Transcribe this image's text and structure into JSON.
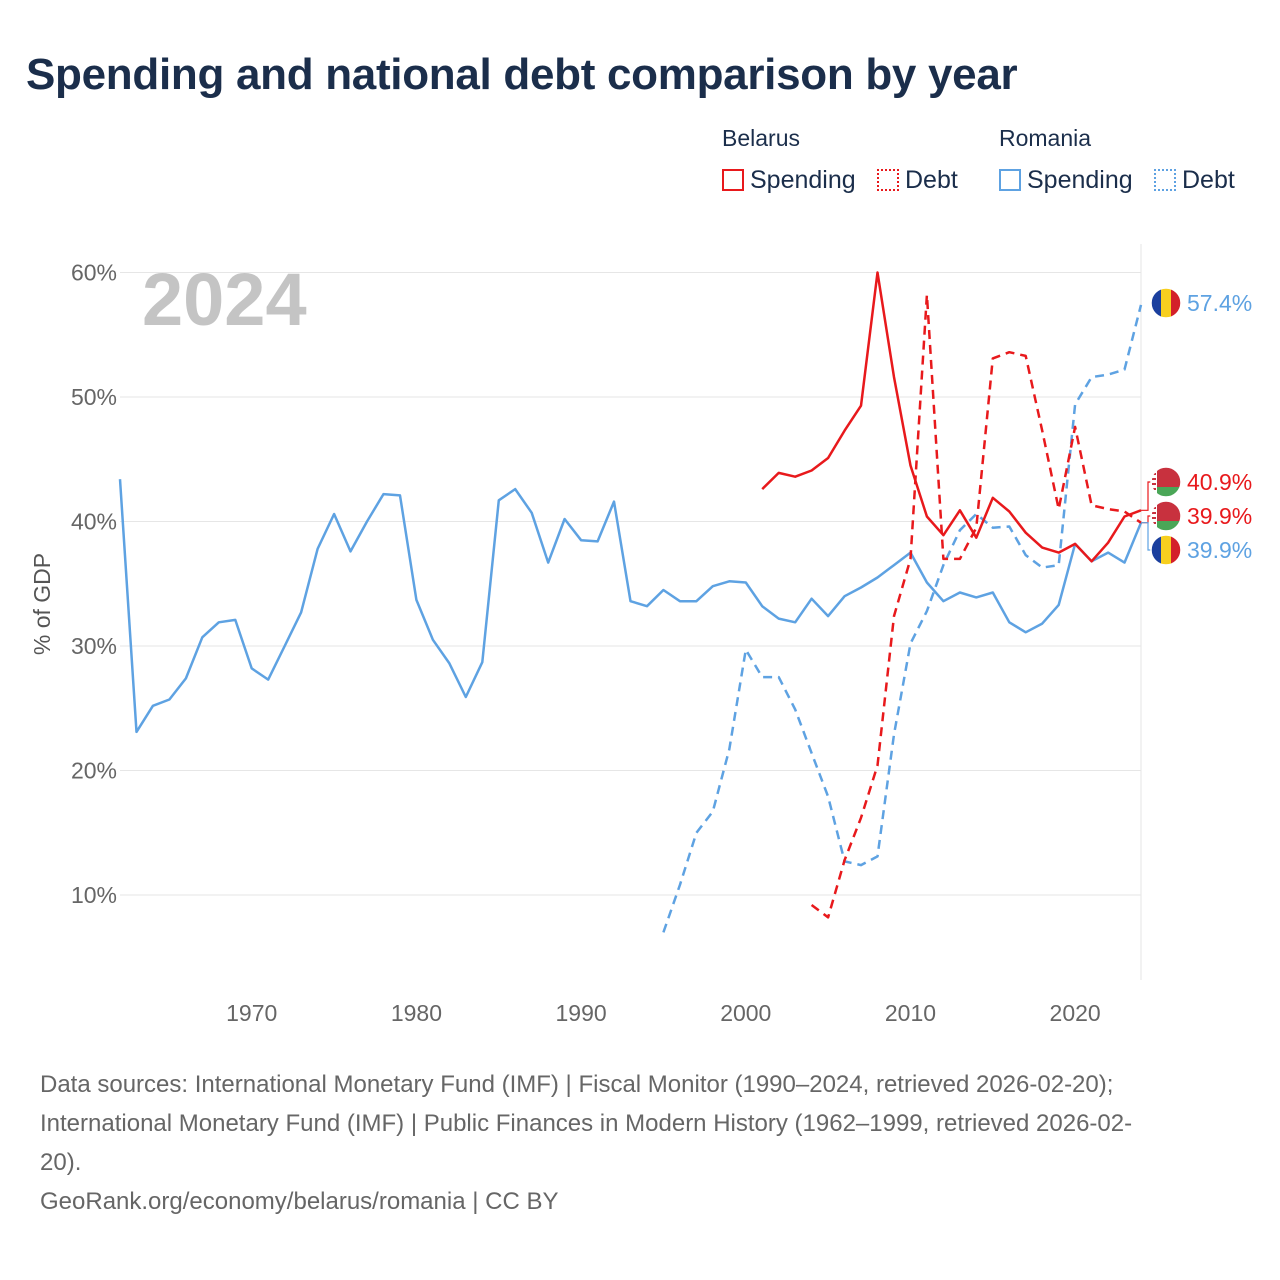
{
  "title": "Spending and national debt comparison by year",
  "legend": {
    "belarus": {
      "label": "Belarus",
      "spending": "Spending",
      "debt": "Debt"
    },
    "romania": {
      "label": "Romania",
      "spending": "Spending",
      "debt": "Debt"
    }
  },
  "footer": {
    "line1": "Data sources: International Monetary Fund (IMF) | Fiscal Monitor (1990–2024, retrieved 2026-02-20);",
    "line2": "International Monetary Fund (IMF) | Public Finances in Modern History (1962–1999, retrieved 2026-02-",
    "line3": "20).",
    "line4": "GeoRank.org/economy/belarus/romania | CC BY"
  },
  "colors": {
    "belarus": "#e8191c",
    "romania": "#5ea2e2",
    "grid": "#e6e6e6",
    "text": "#1b2e4b",
    "axis": "#666666",
    "year": "#c4c4c4"
  },
  "chart_data": {
    "type": "line",
    "title": "Spending and national debt comparison by year",
    "watermark_year": "2024",
    "ylabel": "% of GDP",
    "xlabel": "",
    "xlim": [
      1962,
      2024
    ],
    "ylim": [
      3,
      61
    ],
    "yticks": [
      10,
      20,
      30,
      40,
      50,
      60
    ],
    "ytick_labels": [
      "10%",
      "20%",
      "30%",
      "40%",
      "50%",
      "60%"
    ],
    "xticks": [
      1970,
      1980,
      1990,
      2000,
      2010,
      2020
    ],
    "xtick_labels": [
      "1970",
      "1980",
      "1990",
      "2000",
      "2010",
      "2020"
    ],
    "series": [
      {
        "name": "Romania Spending",
        "country": "romania",
        "style": "solid",
        "x": [
          1962,
          1963,
          1964,
          1965,
          1966,
          1967,
          1968,
          1969,
          1970,
          1971,
          1972,
          1973,
          1974,
          1975,
          1976,
          1977,
          1978,
          1979,
          1980,
          1981,
          1982,
          1983,
          1984,
          1985,
          1986,
          1987,
          1988,
          1989,
          1990,
          1991,
          1992,
          1993,
          1994,
          1995,
          1996,
          1997,
          1998,
          1999,
          2000,
          2001,
          2002,
          2003,
          2004,
          2005,
          2006,
          2007,
          2008,
          2009,
          2010,
          2011,
          2012,
          2013,
          2014,
          2015,
          2016,
          2017,
          2018,
          2019,
          2020,
          2021,
          2022,
          2023,
          2024
        ],
        "values": [
          43.4,
          23.1,
          25.2,
          25.7,
          27.4,
          30.7,
          31.9,
          32.1,
          28.2,
          27.3,
          30.0,
          32.7,
          37.8,
          40.6,
          37.6,
          40.0,
          42.2,
          42.1,
          33.7,
          30.5,
          28.6,
          25.9,
          28.7,
          41.7,
          42.6,
          40.7,
          36.7,
          40.2,
          38.5,
          38.4,
          41.6,
          33.6,
          33.2,
          34.5,
          33.6,
          33.6,
          34.8,
          35.2,
          35.1,
          33.2,
          32.2,
          31.9,
          33.8,
          32.4,
          34.0,
          34.7,
          35.5,
          36.5,
          37.5,
          35.1,
          33.6,
          34.3,
          33.9,
          34.3,
          31.9,
          31.1,
          31.8,
          33.3,
          38.2,
          36.8,
          37.5,
          36.7,
          39.9
        ]
      },
      {
        "name": "Romania Debt",
        "country": "romania",
        "style": "dashed",
        "x": [
          1995,
          1996,
          1997,
          1998,
          1999,
          2000,
          2001,
          2002,
          2003,
          2004,
          2005,
          2006,
          2007,
          2008,
          2009,
          2010,
          2011,
          2012,
          2013,
          2014,
          2015,
          2016,
          2017,
          2018,
          2019,
          2020,
          2021,
          2022,
          2023,
          2024
        ],
        "values": [
          7.0,
          10.8,
          15.0,
          16.7,
          21.7,
          29.7,
          27.5,
          27.5,
          24.9,
          21.4,
          17.9,
          12.7,
          12.4,
          13.1,
          22.9,
          30.2,
          32.8,
          36.5,
          39.3,
          40.6,
          39.5,
          39.6,
          37.3,
          36.3,
          36.5,
          49.4,
          51.6,
          51.8,
          52.2,
          57.4
        ]
      },
      {
        "name": "Belarus Spending",
        "country": "belarus",
        "style": "solid",
        "x": [
          2001,
          2002,
          2003,
          2004,
          2005,
          2006,
          2007,
          2008,
          2009,
          2010,
          2011,
          2012,
          2013,
          2014,
          2015,
          2016,
          2017,
          2018,
          2019,
          2020,
          2021,
          2022,
          2023,
          2024
        ],
        "values": [
          42.6,
          43.9,
          43.6,
          44.1,
          45.1,
          47.3,
          49.3,
          60.0,
          51.6,
          44.5,
          40.4,
          38.9,
          40.9,
          38.7,
          41.9,
          40.8,
          39.1,
          37.9,
          37.5,
          38.2,
          36.8,
          38.3,
          40.4,
          40.9
        ]
      },
      {
        "name": "Belarus Debt",
        "country": "belarus",
        "style": "dashed",
        "x": [
          2004,
          2005,
          2006,
          2007,
          2008,
          2009,
          2010,
          2011,
          2012,
          2013,
          2014,
          2015,
          2016,
          2017,
          2018,
          2019,
          2020,
          2021,
          2022,
          2023,
          2024
        ],
        "values": [
          9.2,
          8.2,
          12.8,
          16.2,
          20.4,
          32.4,
          37.0,
          58.2,
          37.0,
          37.0,
          39.5,
          53.1,
          53.6,
          53.3,
          47.3,
          41.0,
          47.6,
          41.3,
          41.0,
          40.8,
          39.9
        ]
      }
    ],
    "end_labels": [
      {
        "series": "Romania Debt",
        "country": "romania",
        "text": "57.4%"
      },
      {
        "series": "Belarus Spending",
        "country": "belarus",
        "text": "40.9%"
      },
      {
        "series": "Belarus Debt",
        "country": "belarus",
        "text": "39.9%"
      },
      {
        "series": "Romania Spending",
        "country": "romania",
        "text": "39.9%"
      }
    ]
  }
}
